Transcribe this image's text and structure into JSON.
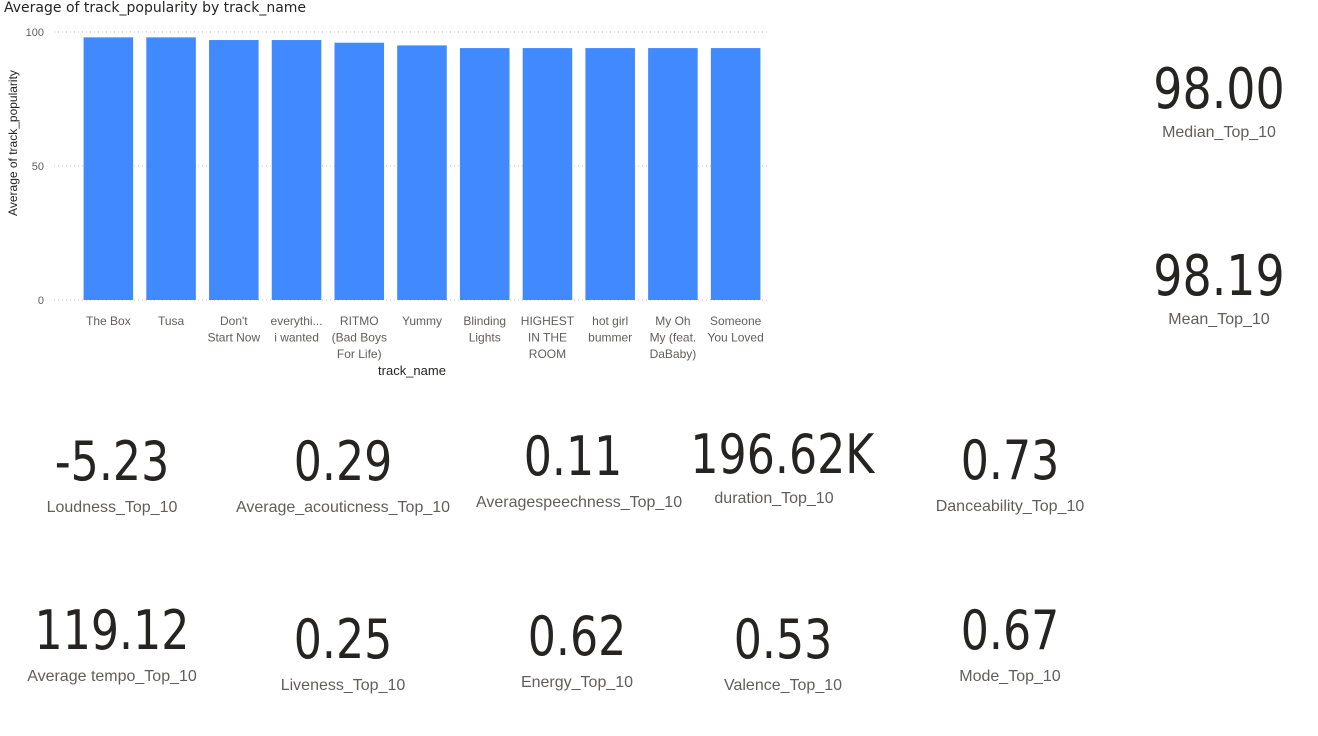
{
  "chart_data": {
    "type": "bar",
    "title": "Average of track_popularity by track_name",
    "xlabel": "track_name",
    "ylabel": "Average of track_popularity",
    "ylim": [
      0,
      100
    ],
    "yticks": [
      0,
      50,
      100
    ],
    "grid": true,
    "bar_color": "#4189FF",
    "categories": [
      [
        "The Box"
      ],
      [
        "Tusa"
      ],
      [
        "Don't",
        "Start Now"
      ],
      [
        "everythi...",
        "i wanted"
      ],
      [
        "RITMO",
        "(Bad Boys",
        "For Life)"
      ],
      [
        "Yummy"
      ],
      [
        "Blinding",
        "Lights"
      ],
      [
        "HIGHEST",
        "IN THE",
        "ROOM"
      ],
      [
        "hot girl",
        "bummer"
      ],
      [
        "My Oh",
        "My (feat.",
        "DaBaby)"
      ],
      [
        "Someone",
        "You Loved"
      ]
    ],
    "values": [
      98,
      98,
      97,
      97,
      96,
      95,
      94,
      94,
      94,
      94,
      94
    ]
  },
  "cards": {
    "median": {
      "value": "98.00",
      "label": "Median_Top_10"
    },
    "mean": {
      "value": "98.19",
      "label": "Mean_Top_10"
    },
    "loudness": {
      "value": "-5.23",
      "label": "Loudness_Top_10"
    },
    "acousticness": {
      "value": "0.29",
      "label": "Average_acouticness_Top_10"
    },
    "speechness": {
      "value": "0.11",
      "label": "Averagespeechness_Top_10"
    },
    "duration": {
      "value": "196.62K",
      "label": "duration_Top_10"
    },
    "danceability": {
      "value": "0.73",
      "label": "Danceability_Top_10"
    },
    "tempo": {
      "value": "119.12",
      "label": "Average tempo_Top_10"
    },
    "liveness": {
      "value": "0.25",
      "label": "Liveness_Top_10"
    },
    "energy": {
      "value": "0.62",
      "label": "Energy_Top_10"
    },
    "valence": {
      "value": "0.53",
      "label": "Valence_Top_10"
    },
    "mode": {
      "value": "0.67",
      "label": "Mode_Top_10"
    }
  }
}
